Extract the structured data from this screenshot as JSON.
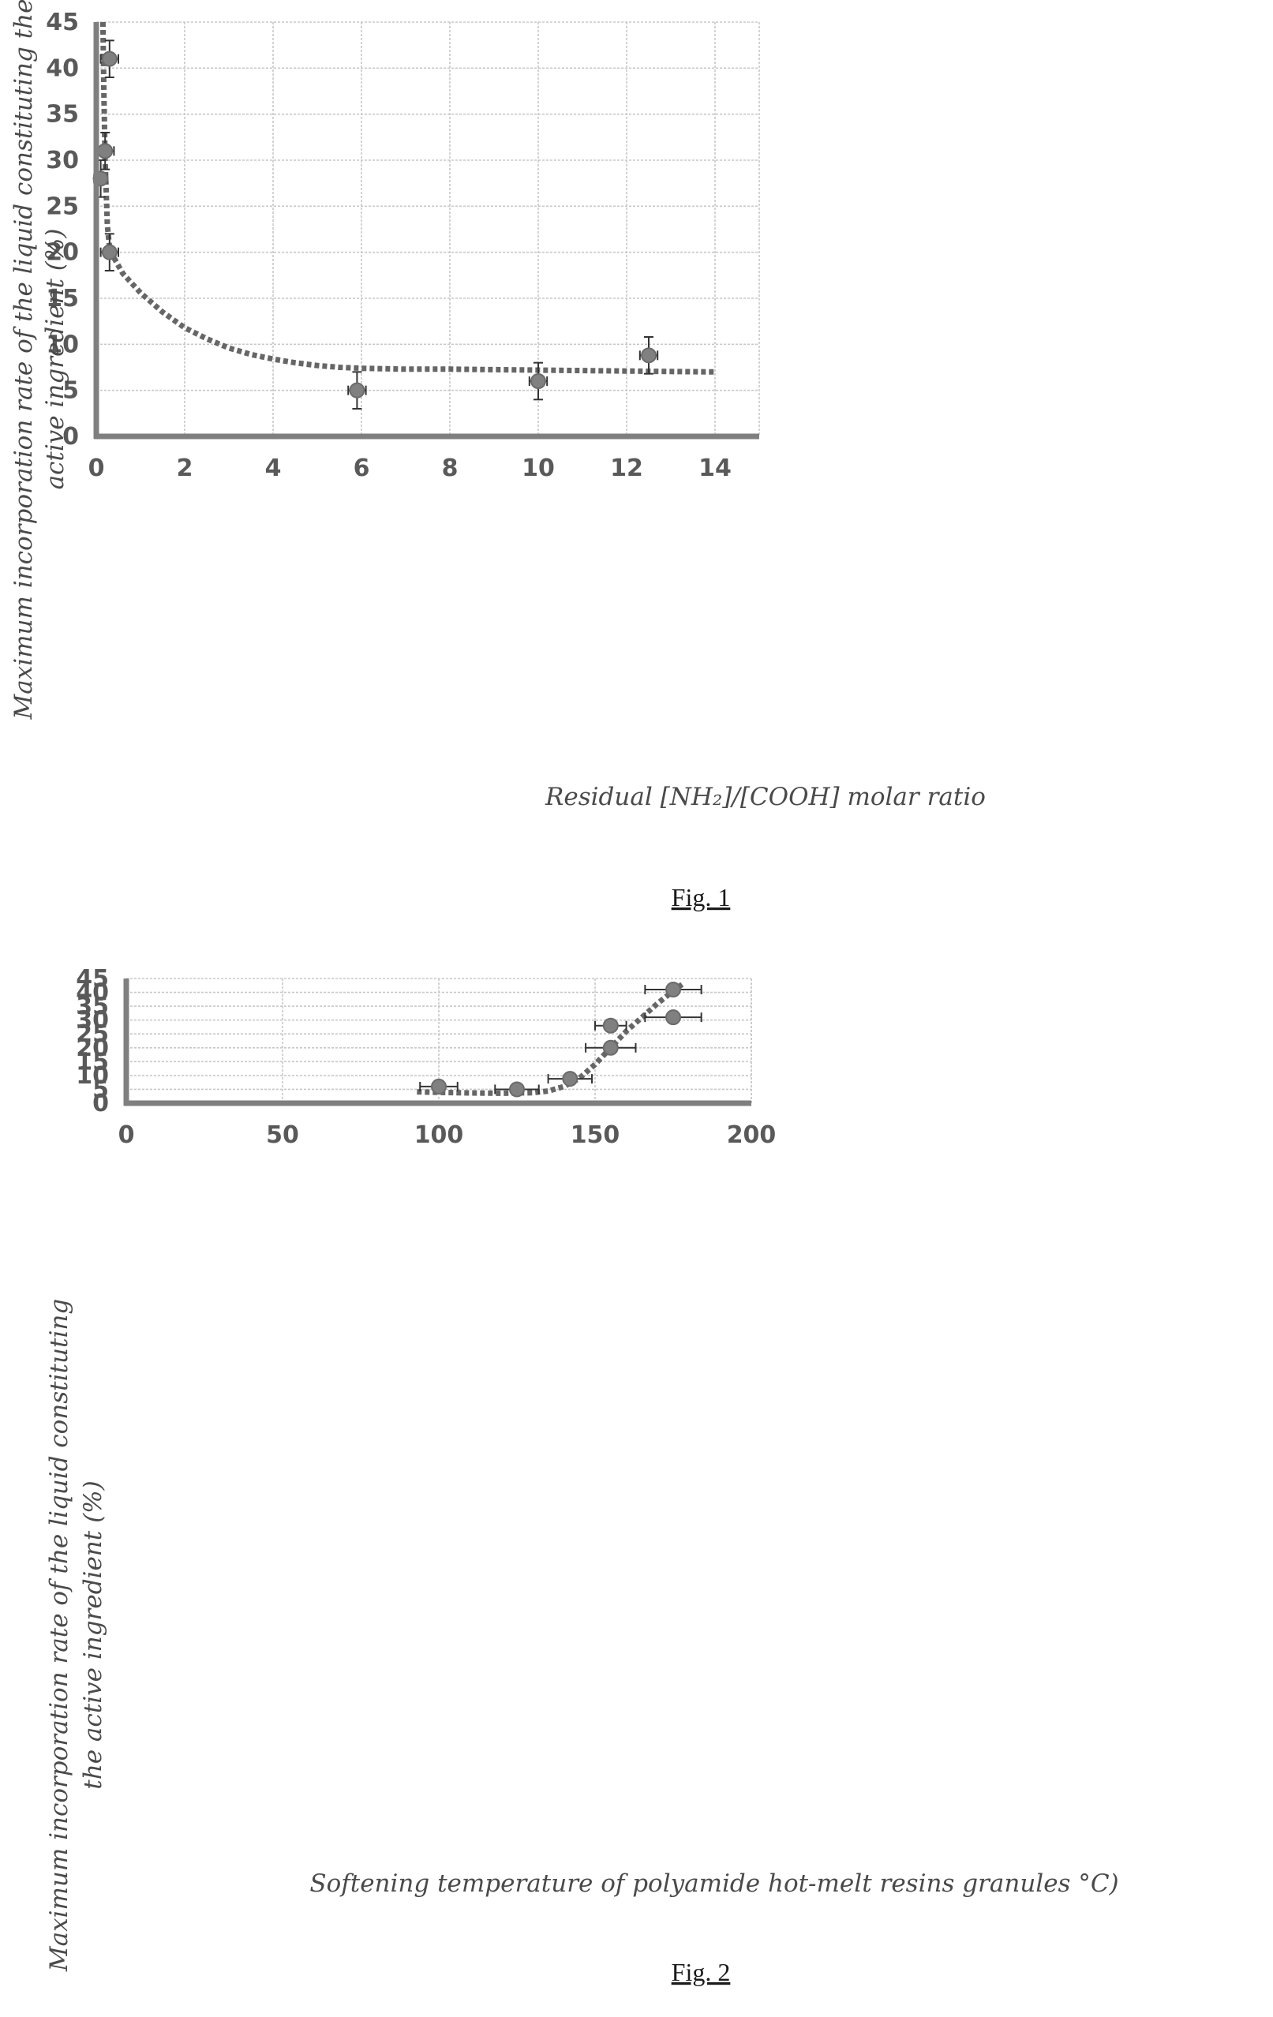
{
  "chart_data": [
    {
      "type": "scatter",
      "title": "",
      "xlabel": "Residual [NH₂]/[COOH] molar ratio",
      "ylabel_line1": "Maximum incorporation rate of the liquid constituting the",
      "ylabel_line2": "active ingredient (%)",
      "xlim": [
        0,
        15
      ],
      "ylim": [
        0,
        45
      ],
      "x_ticks": [
        0,
        2,
        4,
        6,
        8,
        10,
        12,
        14
      ],
      "x_tick_labels": [
        "0",
        "2",
        "4",
        "6",
        "8",
        "10",
        "12",
        "14"
      ],
      "y_ticks": [
        0,
        5,
        10,
        15,
        20,
        25,
        30,
        35,
        40,
        45
      ],
      "y_tick_labels": [
        "0",
        "5",
        "10",
        "15",
        "20",
        "25",
        "30",
        "35",
        "40",
        "45"
      ],
      "grid": true,
      "series": [
        {
          "points": [
            {
              "x": 0.3,
              "y": 41,
              "xerr": 0.2,
              "yerr": 2
            },
            {
              "x": 0.2,
              "y": 31,
              "xerr": 0.2,
              "yerr": 2
            },
            {
              "x": 0.1,
              "y": 28,
              "xerr": 0.15,
              "yerr": 2
            },
            {
              "x": 0.3,
              "y": 20,
              "xerr": 0.2,
              "yerr": 2
            },
            {
              "x": 5.9,
              "y": 5,
              "xerr": 0.2,
              "yerr": 2
            },
            {
              "x": 10,
              "y": 6,
              "xerr": 0.2,
              "yerr": 2
            },
            {
              "x": 12.5,
              "y": 8.8,
              "xerr": 0.2,
              "yerr": 2
            }
          ]
        }
      ],
      "trendline": [
        [
          0.15,
          45
        ],
        [
          0.17,
          38
        ],
        [
          0.2,
          30
        ],
        [
          0.25,
          23
        ],
        [
          0.3,
          20.5
        ],
        [
          0.4,
          19.4
        ],
        [
          0.6,
          17.7
        ],
        [
          1,
          15.6
        ],
        [
          1.5,
          13.5
        ],
        [
          2,
          11.8
        ],
        [
          2.5,
          10.6
        ],
        [
          3,
          9.6
        ],
        [
          3.5,
          8.9
        ],
        [
          4,
          8.4
        ],
        [
          4.5,
          8.0
        ],
        [
          5,
          7.7
        ],
        [
          5.5,
          7.5
        ],
        [
          6,
          7.4
        ],
        [
          7,
          7.3
        ],
        [
          8,
          7.3
        ],
        [
          9,
          7.25
        ],
        [
          10,
          7.2
        ],
        [
          11,
          7.15
        ],
        [
          12,
          7.1
        ],
        [
          13,
          7.05
        ],
        [
          14,
          7.0
        ]
      ],
      "caption": "Fig. 1"
    },
    {
      "type": "scatter",
      "title": "",
      "xlabel": "Softening temperature of polyamide hot-melt resins granules °C)",
      "ylabel_line1": "Maximum incorporation rate of the liquid constituting",
      "ylabel_line2": "the active ingredient (%)",
      "xlim": [
        0,
        200
      ],
      "ylim": [
        0,
        45
      ],
      "x_ticks": [
        0,
        50,
        100,
        150,
        200
      ],
      "x_tick_labels": [
        "0",
        "50",
        "100",
        "150",
        "200"
      ],
      "y_ticks": [
        0,
        5,
        10,
        15,
        20,
        25,
        30,
        35,
        40,
        45
      ],
      "y_tick_labels": [
        "0",
        "5",
        "10",
        "15",
        "20",
        "25",
        "30",
        "35",
        "40",
        "45"
      ],
      "grid": true,
      "series": [
        {
          "points": [
            {
              "x": 175,
              "y": 41,
              "xerr": 9,
              "yerr": 2
            },
            {
              "x": 175,
              "y": 31,
              "xerr": 9,
              "yerr": 2
            },
            {
              "x": 155,
              "y": 28,
              "xerr": 5,
              "yerr": 2
            },
            {
              "x": 155,
              "y": 20,
              "xerr": 8,
              "yerr": 2
            },
            {
              "x": 142,
              "y": 8.8,
              "xerr": 7,
              "yerr": 2
            },
            {
              "x": 125,
              "y": 5,
              "xerr": 7,
              "yerr": 2
            },
            {
              "x": 100,
              "y": 6,
              "xerr": 6,
              "yerr": 2
            }
          ]
        }
      ],
      "trendline": [
        [
          93,
          4.1
        ],
        [
          100,
          3.9
        ],
        [
          110,
          3.7
        ],
        [
          120,
          3.6
        ],
        [
          130,
          3.8
        ],
        [
          135,
          4.4
        ],
        [
          140,
          6.0
        ],
        [
          145,
          9.0
        ],
        [
          150,
          14.0
        ],
        [
          155,
          20.0
        ],
        [
          160,
          26.0
        ],
        [
          165,
          31.0
        ],
        [
          170,
          36.0
        ],
        [
          175,
          40.5
        ],
        [
          178,
          43
        ]
      ],
      "caption": "Fig. 2"
    }
  ]
}
